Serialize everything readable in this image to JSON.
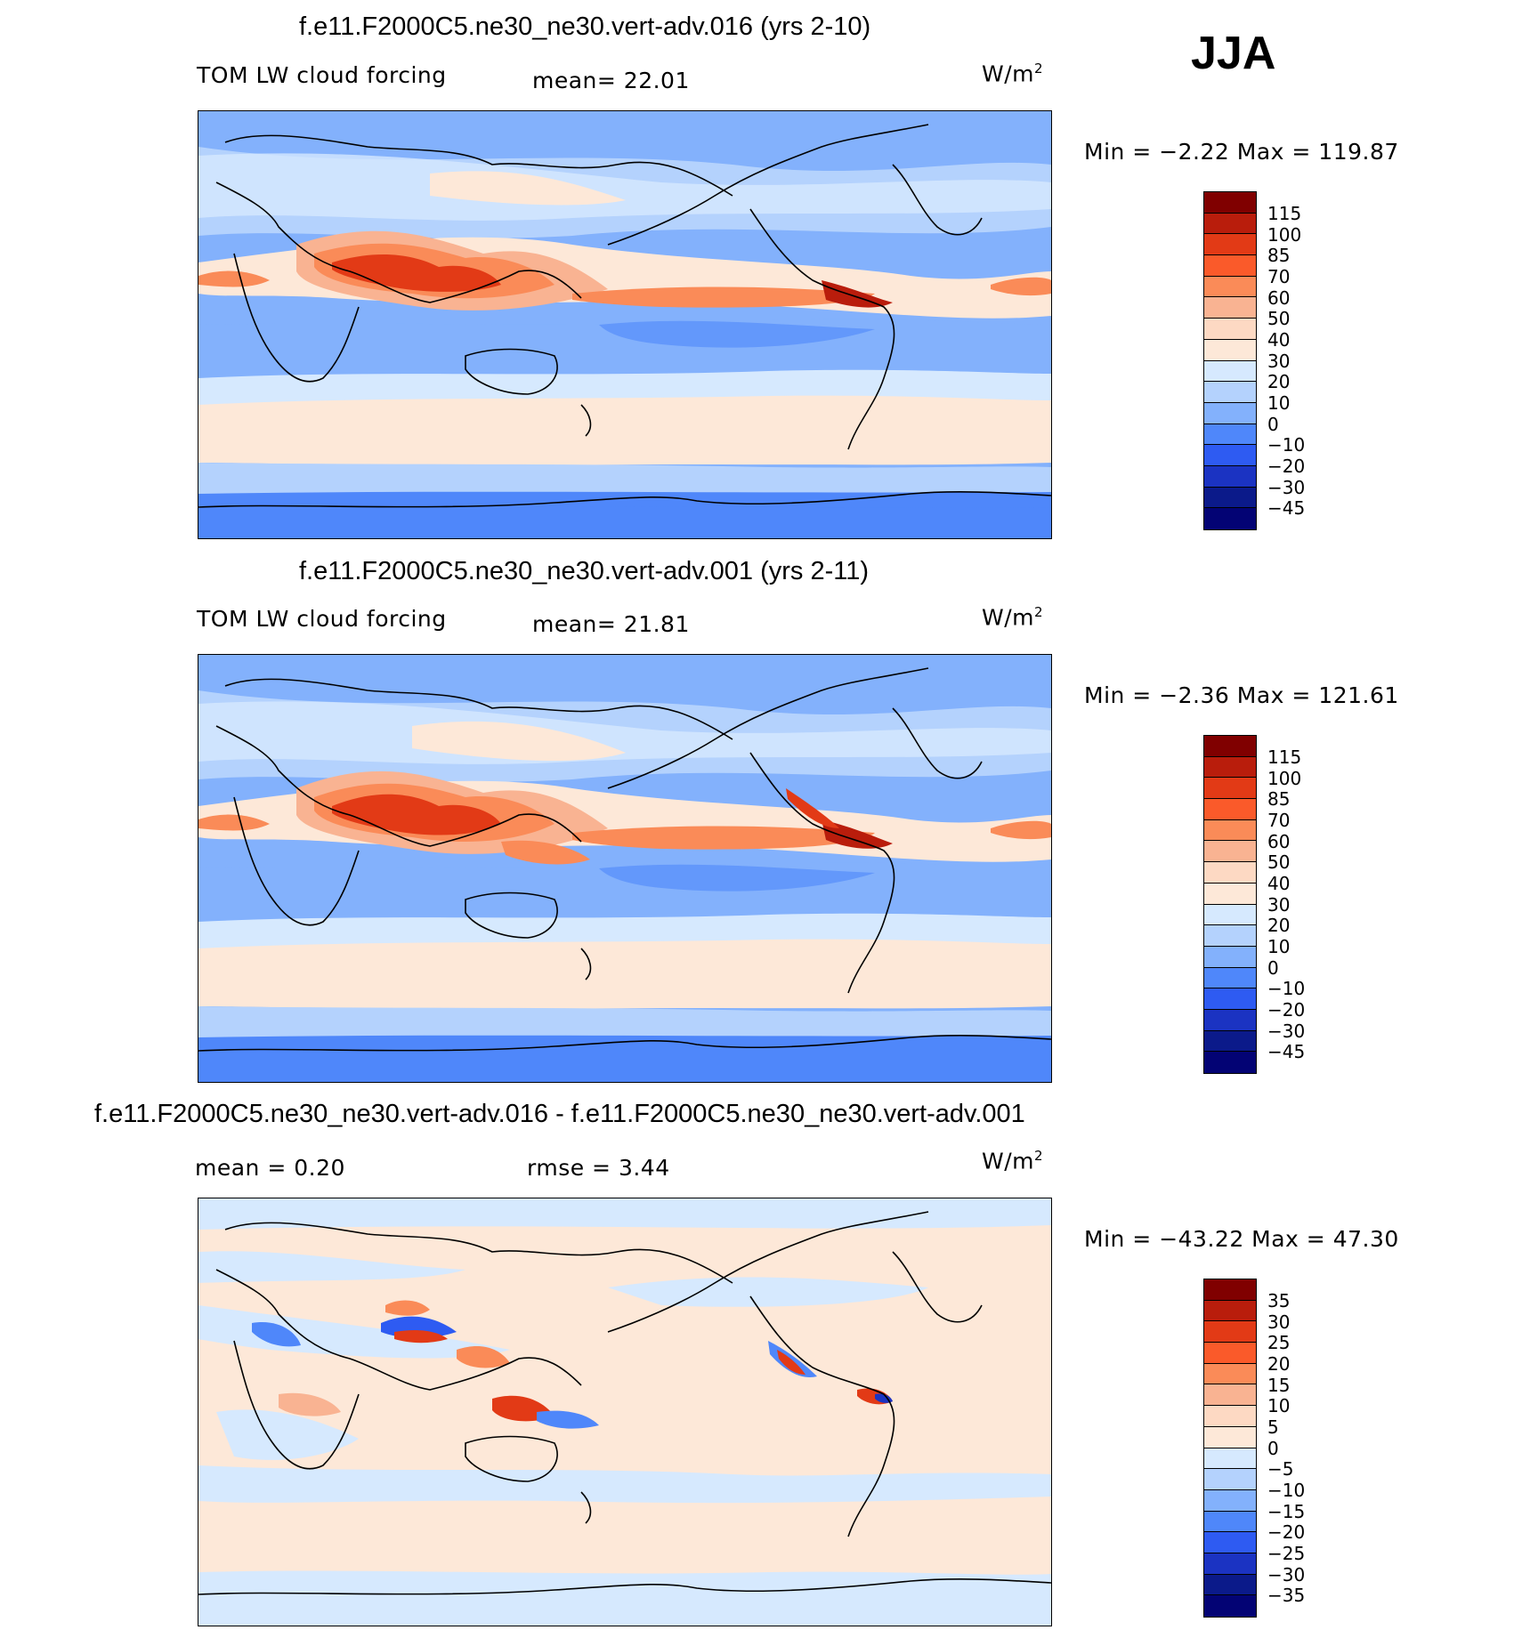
{
  "season": "JJA",
  "panels": [
    {
      "title": "f.e11.F2000C5.ne30_ne30.vert-adv.016 (yrs 2-10)",
      "left_label": "TOM LW cloud forcing",
      "center_label": "mean=   22.01",
      "units": "W/m",
      "units_sup": "2",
      "minmax": "Min =   −2.22 Max = 119.87",
      "colorbar_ticks": [
        "115",
        "100",
        "85",
        "70",
        "60",
        "50",
        "40",
        "30",
        "20",
        "10",
        "0",
        "−10",
        "−20",
        "−30",
        "−45"
      ],
      "colors": [
        "#800000",
        "#b91d0c",
        "#e23a16",
        "#fa5a2a",
        "#fa8b58",
        "#f9b392",
        "#fdd9c3",
        "#fde8d8",
        "#d6e9fe",
        "#b4d2fd",
        "#83b1fc",
        "#4f87fa",
        "#2e5bf2",
        "#1b33c2",
        "#0b1a8a",
        "#030374"
      ]
    },
    {
      "title": "f.e11.F2000C5.ne30_ne30.vert-adv.001 (yrs 2-11)",
      "left_label": "TOM LW cloud forcing",
      "center_label": "mean=   21.81",
      "units": "W/m",
      "units_sup": "2",
      "minmax": "Min =   −2.36 Max = 121.61",
      "colorbar_ticks": [
        "115",
        "100",
        "85",
        "70",
        "60",
        "50",
        "40",
        "30",
        "20",
        "10",
        "0",
        "−10",
        "−20",
        "−30",
        "−45"
      ],
      "colors": [
        "#800000",
        "#b91d0c",
        "#e23a16",
        "#fa5a2a",
        "#fa8b58",
        "#f9b392",
        "#fdd9c3",
        "#fde8d8",
        "#d6e9fe",
        "#b4d2fd",
        "#83b1fc",
        "#4f87fa",
        "#2e5bf2",
        "#1b33c2",
        "#0b1a8a",
        "#030374"
      ]
    },
    {
      "title": "f.e11.F2000C5.ne30_ne30.vert-adv.016 - f.e11.F2000C5.ne30_ne30.vert-adv.001",
      "left_label": "mean =     0.20",
      "center_label": "rmse =     3.44",
      "units": "W/m",
      "units_sup": "2",
      "minmax": "Min = −43.22 Max =   47.30",
      "colorbar_ticks": [
        "35",
        "30",
        "25",
        "20",
        "15",
        "10",
        "5",
        "0",
        "−5",
        "−10",
        "−15",
        "−20",
        "−25",
        "−30",
        "−35"
      ],
      "colors": [
        "#800000",
        "#b91d0c",
        "#e23a16",
        "#fa5a2a",
        "#fa8b58",
        "#f9b392",
        "#fdd9c3",
        "#fde8d8",
        "#d6e9fe",
        "#b4d2fd",
        "#83b1fc",
        "#4f87fa",
        "#2e5bf2",
        "#1b33c2",
        "#0b1a8a",
        "#030374"
      ]
    }
  ],
  "chart_data": [
    {
      "type": "heatmap",
      "title": "f.e11.F2000C5.ne30_ne30.vert-adv.016 (yrs 2-10)",
      "variable": "TOM LW cloud forcing",
      "units": "W/m2",
      "mean": 22.01,
      "min": -2.22,
      "max": 119.87,
      "contour_levels": [
        -45,
        -30,
        -20,
        -10,
        0,
        10,
        20,
        30,
        40,
        50,
        60,
        70,
        85,
        100,
        115
      ]
    },
    {
      "type": "heatmap",
      "title": "f.e11.F2000C5.ne30_ne30.vert-adv.001 (yrs 2-11)",
      "variable": "TOM LW cloud forcing",
      "units": "W/m2",
      "mean": 21.81,
      "min": -2.36,
      "max": 121.61,
      "contour_levels": [
        -45,
        -30,
        -20,
        -10,
        0,
        10,
        20,
        30,
        40,
        50,
        60,
        70,
        85,
        100,
        115
      ]
    },
    {
      "type": "heatmap",
      "title": "f.e11.F2000C5.ne30_ne30.vert-adv.016 - f.e11.F2000C5.ne30_ne30.vert-adv.001",
      "units": "W/m2",
      "mean": 0.2,
      "rmse": 3.44,
      "min": -43.22,
      "max": 47.3,
      "contour_levels": [
        -35,
        -30,
        -25,
        -20,
        -15,
        -10,
        -5,
        0,
        5,
        10,
        15,
        20,
        25,
        30,
        35
      ]
    }
  ]
}
